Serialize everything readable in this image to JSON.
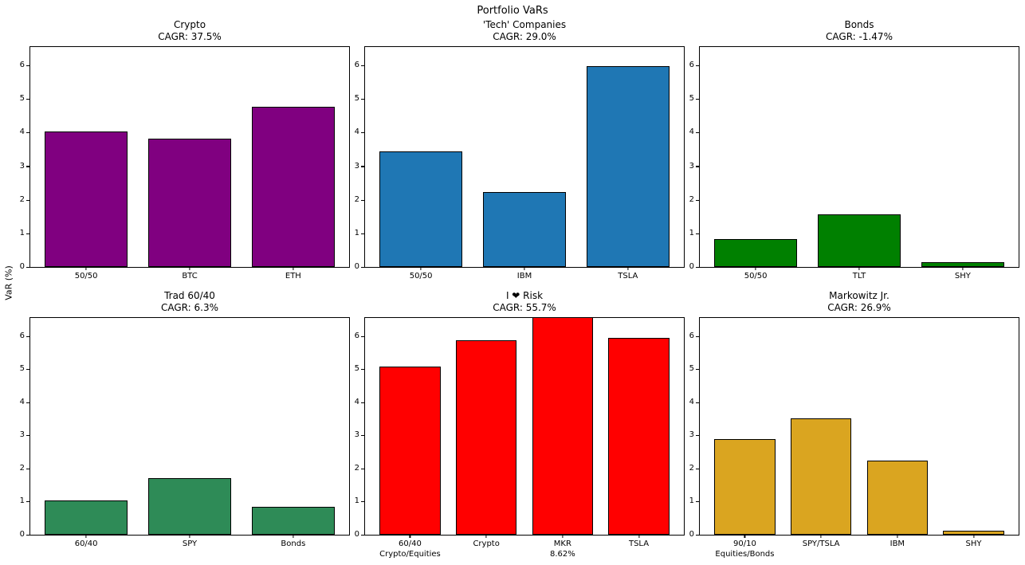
{
  "figure": {
    "title": "Portfolio VaRs",
    "ylabel": "VaR (%)",
    "background_color": "#ffffff",
    "bar_edge_color": "#000000"
  },
  "chart_data": [
    {
      "type": "bar",
      "title": "Crypto",
      "subtitle": "CAGR: 37.5%",
      "categories": [
        "50/50",
        "BTC",
        "ETH"
      ],
      "values": [
        4.04,
        3.81,
        4.78
      ],
      "color": "#800080",
      "xlabel": "",
      "ylabel": "VaR (%)",
      "ylim": [
        0,
        6.55
      ],
      "yticks": [
        0,
        1,
        2,
        3,
        4,
        5,
        6
      ],
      "grid": false,
      "legend": "none"
    },
    {
      "type": "bar",
      "title": "'Tech' Companies",
      "subtitle": "CAGR: 29.0%",
      "categories": [
        "50/50",
        "IBM",
        "TSLA"
      ],
      "values": [
        3.43,
        2.22,
        5.97
      ],
      "color": "#1f77b4",
      "xlabel": "",
      "ylabel": "VaR (%)",
      "ylim": [
        0,
        6.55
      ],
      "yticks": [
        0,
        1,
        2,
        3,
        4,
        5,
        6
      ],
      "grid": false,
      "legend": "none"
    },
    {
      "type": "bar",
      "title": "Bonds",
      "subtitle": "CAGR: -1.47%",
      "categories": [
        "50/50",
        "TLT",
        "SHY"
      ],
      "values": [
        0.84,
        1.56,
        0.14
      ],
      "color": "#008000",
      "xlabel": "",
      "ylabel": "VaR (%)",
      "ylim": [
        0,
        6.55
      ],
      "yticks": [
        0,
        1,
        2,
        3,
        4,
        5,
        6
      ],
      "grid": false,
      "legend": "none"
    },
    {
      "type": "bar",
      "title": "Trad 60/40",
      "subtitle": "CAGR: 6.3%",
      "categories": [
        "60/40",
        "SPY",
        "Bonds"
      ],
      "values": [
        1.04,
        1.71,
        0.84
      ],
      "color": "#2e8b57",
      "xlabel": "",
      "ylabel": "VaR (%)",
      "ylim": [
        0,
        6.55
      ],
      "yticks": [
        0,
        1,
        2,
        3,
        4,
        5,
        6
      ],
      "grid": false,
      "legend": "none"
    },
    {
      "type": "bar",
      "title": "I ❤ Risk",
      "subtitle": "CAGR: 55.7%",
      "categories": [
        "60/40\nCrypto/Equities",
        "Crypto",
        "MKR\n8.62%",
        "TSLA"
      ],
      "values": [
        5.07,
        5.88,
        8.62,
        5.95
      ],
      "color": "#ff0000",
      "xlabel": "",
      "ylabel": "VaR (%)",
      "ylim": [
        0,
        6.55
      ],
      "yticks": [
        0,
        1,
        2,
        3,
        4,
        5,
        6
      ],
      "grid": false,
      "legend": "none",
      "note": "MKR bar (8.62) is clipped at the top of the axes"
    },
    {
      "type": "bar",
      "title": "Markowitz Jr.",
      "subtitle": "CAGR: 26.9%",
      "categories": [
        "90/10\nEquities/Bonds",
        "SPY/TSLA",
        "IBM",
        "SHY"
      ],
      "values": [
        2.88,
        3.51,
        2.23,
        0.13
      ],
      "color": "#daa520",
      "xlabel": "",
      "ylabel": "VaR (%)",
      "ylim": [
        0,
        6.55
      ],
      "yticks": [
        0,
        1,
        2,
        3,
        4,
        5,
        6
      ],
      "grid": false,
      "legend": "none"
    }
  ]
}
